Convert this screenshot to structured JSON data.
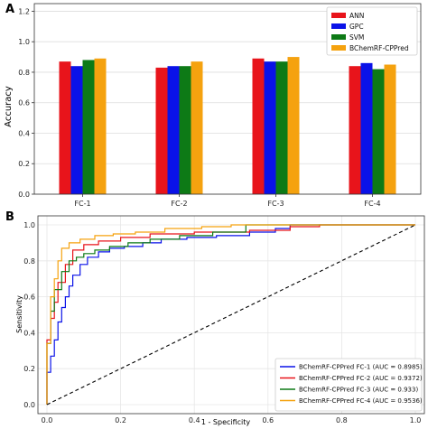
{
  "chart_data": [
    {
      "panel_label": "A",
      "type": "bar",
      "categories": [
        "FC-1",
        "FC-2",
        "FC-3",
        "FC-4"
      ],
      "series": [
        {
          "name": "ANN",
          "color": "#e8141b",
          "values": [
            0.87,
            0.83,
            0.89,
            0.84
          ]
        },
        {
          "name": "GPC",
          "color": "#0a12e8",
          "values": [
            0.84,
            0.84,
            0.87,
            0.86
          ]
        },
        {
          "name": "SVM",
          "color": "#0d7a16",
          "values": [
            0.88,
            0.84,
            0.87,
            0.82
          ]
        },
        {
          "name": "BChemRF-CPPred",
          "color": "#f5a20f",
          "values": [
            0.89,
            0.87,
            0.9,
            0.85
          ]
        }
      ],
      "ylabel": "Accuracy",
      "ylim": [
        0,
        1.25
      ],
      "yticks": [
        "0.0",
        "0.2",
        "0.4",
        "0.6",
        "0.8",
        "1.0",
        "1.2"
      ],
      "ytick_values": [
        0,
        0.2,
        0.4,
        0.6,
        0.8,
        1.0,
        1.2
      ],
      "legend_position": "top-right",
      "grid": "horizontal"
    },
    {
      "panel_label": "B",
      "type": "line",
      "xlabel": "1 - Specificity",
      "ylabel": "Sensitivity",
      "xlim": [
        0,
        1
      ],
      "ylim": [
        0,
        1
      ],
      "xticks": [
        "0.0",
        "0.2",
        "0.4",
        "0.6",
        "0.8",
        "1.0"
      ],
      "yticks": [
        "0.0",
        "0.2",
        "0.4",
        "0.6",
        "0.8",
        "1.0"
      ],
      "tick_values": [
        0,
        0.2,
        0.4,
        0.6,
        0.8,
        1.0
      ],
      "legend_position": "bottom-right",
      "grid": "both",
      "series": [
        {
          "name": "BChemRF-CPPred FC-1 (AUC = 0.8985)",
          "color": "#0a12e8",
          "x": [
            0,
            0,
            0.01,
            0.01,
            0.02,
            0.02,
            0.03,
            0.03,
            0.04,
            0.04,
            0.05,
            0.05,
            0.06,
            0.06,
            0.07,
            0.07,
            0.09,
            0.09,
            0.11,
            0.11,
            0.14,
            0.14,
            0.17,
            0.17,
            0.21,
            0.21,
            0.26,
            0.26,
            0.31,
            0.31,
            0.38,
            0.38,
            0.46,
            0.46,
            0.55,
            0.55,
            0.62,
            0.62,
            0.66,
            0.66,
            0.72,
            1.0
          ],
          "y": [
            0,
            0.18,
            0.18,
            0.27,
            0.27,
            0.36,
            0.36,
            0.46,
            0.46,
            0.54,
            0.54,
            0.6,
            0.6,
            0.66,
            0.66,
            0.72,
            0.72,
            0.78,
            0.78,
            0.82,
            0.82,
            0.85,
            0.85,
            0.87,
            0.87,
            0.88,
            0.88,
            0.9,
            0.9,
            0.92,
            0.92,
            0.93,
            0.93,
            0.94,
            0.94,
            0.96,
            0.96,
            0.98,
            0.98,
            1.0,
            1.0,
            1.0
          ]
        },
        {
          "name": "BChemRF-CPPred FC-2 (AUC = 0.9372)",
          "color": "#e8141b",
          "x": [
            0,
            0,
            0.01,
            0.01,
            0.02,
            0.02,
            0.03,
            0.03,
            0.05,
            0.05,
            0.07,
            0.07,
            0.1,
            0.1,
            0.14,
            0.14,
            0.2,
            0.2,
            0.28,
            0.28,
            0.4,
            0.4,
            0.55,
            0.55,
            0.66,
            0.66,
            0.74,
            0.74,
            1.0
          ],
          "y": [
            0,
            0.36,
            0.36,
            0.48,
            0.48,
            0.57,
            0.57,
            0.68,
            0.68,
            0.78,
            0.78,
            0.86,
            0.86,
            0.89,
            0.89,
            0.91,
            0.91,
            0.93,
            0.93,
            0.95,
            0.95,
            0.96,
            0.96,
            0.97,
            0.97,
            0.99,
            0.99,
            1.0,
            1.0
          ]
        },
        {
          "name": "BChemRF-CPPred FC-3 (AUC = 0.933)",
          "color": "#0d7a16",
          "x": [
            0,
            0,
            0.01,
            0.01,
            0.02,
            0.02,
            0.04,
            0.04,
            0.06,
            0.06,
            0.08,
            0.08,
            0.1,
            0.1,
            0.13,
            0.13,
            0.17,
            0.17,
            0.22,
            0.22,
            0.28,
            0.28,
            0.36,
            0.36,
            0.45,
            0.45,
            0.54,
            0.54,
            1.0
          ],
          "y": [
            0,
            0.34,
            0.34,
            0.52,
            0.52,
            0.64,
            0.64,
            0.74,
            0.74,
            0.8,
            0.8,
            0.82,
            0.82,
            0.84,
            0.84,
            0.86,
            0.86,
            0.88,
            0.88,
            0.9,
            0.9,
            0.92,
            0.92,
            0.94,
            0.94,
            0.96,
            0.96,
            1.0,
            1.0
          ]
        },
        {
          "name": "BChemRF-CPPred FC-4 (AUC = 0.9536)",
          "color": "#f5a20f",
          "x": [
            0,
            0,
            0.01,
            0.01,
            0.02,
            0.02,
            0.03,
            0.03,
            0.04,
            0.04,
            0.06,
            0.06,
            0.09,
            0.09,
            0.13,
            0.13,
            0.18,
            0.18,
            0.24,
            0.24,
            0.32,
            0.32,
            0.42,
            0.42,
            0.5,
            0.5,
            1.0
          ],
          "y": [
            0,
            0.34,
            0.34,
            0.6,
            0.6,
            0.7,
            0.7,
            0.8,
            0.8,
            0.87,
            0.87,
            0.9,
            0.9,
            0.92,
            0.92,
            0.94,
            0.94,
            0.95,
            0.95,
            0.96,
            0.96,
            0.98,
            0.98,
            0.99,
            0.99,
            1.0,
            1.0
          ]
        },
        {
          "name": "",
          "color": "#000000",
          "dashed": true,
          "x": [
            0,
            1
          ],
          "y": [
            0,
            1
          ]
        }
      ]
    }
  ]
}
